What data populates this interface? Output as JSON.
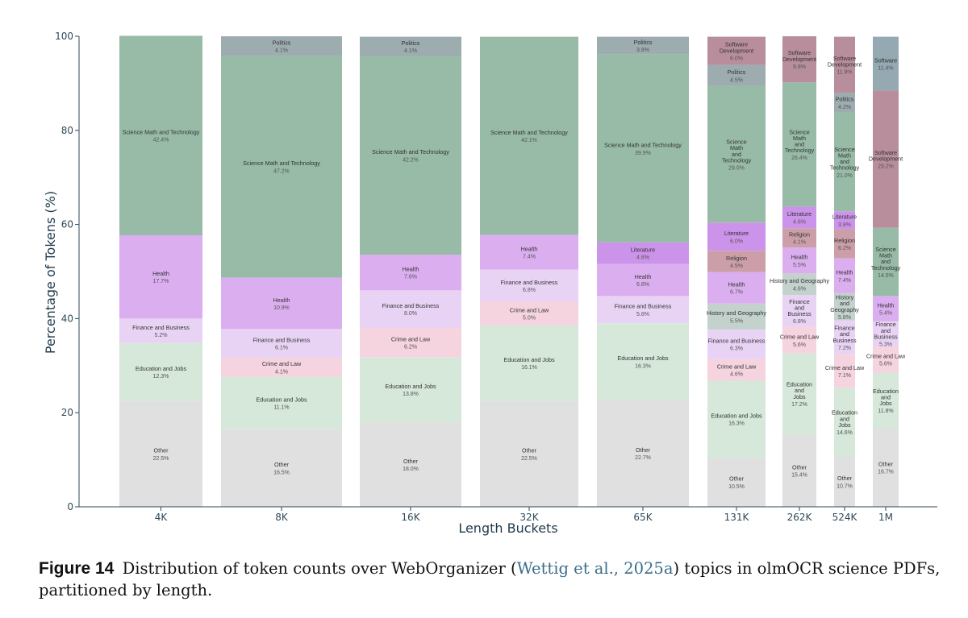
{
  "chart_data": {
    "type": "bar",
    "stacked": true,
    "xlabel": "Length Buckets",
    "ylabel": "Percentage of Tokens (%)",
    "ylim": [
      0,
      100
    ],
    "yticks": [
      0,
      20,
      40,
      60,
      80,
      100
    ],
    "categories": [
      "4K",
      "8K",
      "16K",
      "32K",
      "65K",
      "131K",
      "262K",
      "524K",
      "1M"
    ],
    "topic_colors": {
      "Other": "#e0e0e0",
      "Education and Jobs": "#d5e8da",
      "Crime and Law": "#f5d3df",
      "Finance and Business": "#e8d3f5",
      "Health": "#dbaef0",
      "Religion": "#cc9fa8",
      "Literature": "#cc93ea",
      "History and Geography": "#c3d2cc",
      "Science Math and Technology": "#98bba7",
      "Politics": "#9cacaf",
      "Software Development": "#b88e9c",
      "Software": "#94a9b1"
    },
    "bars": [
      {
        "category": "4K",
        "segments": [
          {
            "topic": "Other",
            "label": "Other",
            "value": 22.5,
            "pct": "22.5%"
          },
          {
            "topic": "Education and Jobs",
            "label": "Education and Jobs",
            "value": 12.3,
            "pct": "12.3%"
          },
          {
            "topic": "Finance and Business",
            "label": "Finance and Business",
            "value": 5.2,
            "pct": "5.2%"
          },
          {
            "topic": "Health",
            "label": "Health",
            "value": 17.7,
            "pct": "17.7%"
          },
          {
            "topic": "Science Math and Technology",
            "label": "Science Math and Technology",
            "value": 42.4,
            "pct": "42.4%"
          }
        ]
      },
      {
        "category": "8K",
        "segments": [
          {
            "topic": "Other",
            "label": "Other",
            "value": 16.5,
            "pct": "16.5%"
          },
          {
            "topic": "Education and Jobs",
            "label": "Education and Jobs",
            "value": 11.1,
            "pct": "11.1%"
          },
          {
            "topic": "Crime and Law",
            "label": "Crime and Law",
            "value": 4.1,
            "pct": "4.1%"
          },
          {
            "topic": "Finance and Business",
            "label": "Finance and Business",
            "value": 6.1,
            "pct": "6.1%"
          },
          {
            "topic": "Health",
            "label": "Health",
            "value": 10.9,
            "pct": "10.9%"
          },
          {
            "topic": "Science Math and Technology",
            "label": "Science Math and Technology",
            "value": 47.2,
            "pct": "47.2%"
          },
          {
            "topic": "Politics",
            "label": "Politics",
            "value": 4.1,
            "pct": "4.1%"
          }
        ]
      },
      {
        "category": "16K",
        "segments": [
          {
            "topic": "Other",
            "label": "Other",
            "value": 18.0,
            "pct": "18.0%"
          },
          {
            "topic": "Education and Jobs",
            "label": "Education and Jobs",
            "value": 13.8,
            "pct": "13.8%"
          },
          {
            "topic": "Crime and Law",
            "label": "Crime and Law",
            "value": 6.2,
            "pct": "6.2%"
          },
          {
            "topic": "Finance and Business",
            "label": "Finance and Business",
            "value": 8.0,
            "pct": "8.0%"
          },
          {
            "topic": "Health",
            "label": "Health",
            "value": 7.6,
            "pct": "7.6%"
          },
          {
            "topic": "Science Math and Technology",
            "label": "Science Math and Technology",
            "value": 42.2,
            "pct": "42.2%"
          },
          {
            "topic": "Politics",
            "label": "Politics",
            "value": 4.1,
            "pct": "4.1%"
          }
        ]
      },
      {
        "category": "32K",
        "segments": [
          {
            "topic": "Other",
            "label": "Other",
            "value": 22.5,
            "pct": "22.5%"
          },
          {
            "topic": "Education and Jobs",
            "label": "Education and Jobs",
            "value": 16.1,
            "pct": "16.1%"
          },
          {
            "topic": "Crime and Law",
            "label": "Crime and Law",
            "value": 5.0,
            "pct": "5.0%"
          },
          {
            "topic": "Finance and Business",
            "label": "Finance and Business",
            "value": 6.8,
            "pct": "6.8%"
          },
          {
            "topic": "Health",
            "label": "Health",
            "value": 7.4,
            "pct": "7.4%"
          },
          {
            "topic": "Science Math and Technology",
            "label": "Science Math and Technology",
            "value": 42.1,
            "pct": "42.1%"
          }
        ]
      },
      {
        "category": "65K",
        "segments": [
          {
            "topic": "Other",
            "label": "Other",
            "value": 22.7,
            "pct": "22.7%"
          },
          {
            "topic": "Education and Jobs",
            "label": "Education and Jobs",
            "value": 16.3,
            "pct": "16.3%"
          },
          {
            "topic": "Finance and Business",
            "label": "Finance and Business",
            "value": 5.8,
            "pct": "5.8%"
          },
          {
            "topic": "Health",
            "label": "Health",
            "value": 6.8,
            "pct": "6.8%"
          },
          {
            "topic": "Literature",
            "label": "Literature",
            "value": 4.6,
            "pct": "4.6%"
          },
          {
            "topic": "Science Math and Technology",
            "label": "Science Math and Technology",
            "value": 39.9,
            "pct": "39.9%"
          },
          {
            "topic": "Politics",
            "label": "Politics",
            "value": 3.8,
            "pct": "3.8%"
          }
        ]
      },
      {
        "category": "131K",
        "segments": [
          {
            "topic": "Other",
            "label": "Other",
            "value": 10.5,
            "pct": "10.5%"
          },
          {
            "topic": "Education and Jobs",
            "label": "Education and Jobs",
            "value": 16.3,
            "pct": "16.3%"
          },
          {
            "topic": "Crime and Law",
            "label": "Crime and Law",
            "value": 4.6,
            "pct": "4.6%"
          },
          {
            "topic": "Finance and Business",
            "label": "Finance and Business",
            "value": 6.3,
            "pct": "6.3%"
          },
          {
            "topic": "History and Geography",
            "label": "History and Geography",
            "value": 5.5,
            "pct": "5.5%"
          },
          {
            "topic": "Health",
            "label": "Health",
            "value": 6.7,
            "pct": "6.7%"
          },
          {
            "topic": "Religion",
            "label": "Religion",
            "value": 4.5,
            "pct": "4.5%"
          },
          {
            "topic": "Literature",
            "label": "Literature",
            "value": 6.0,
            "pct": "6.0%"
          },
          {
            "topic": "Science Math and Technology",
            "label": "Science\nMath\nand\nTechnology",
            "value": 29.0,
            "pct": "29.0%"
          },
          {
            "topic": "Politics",
            "label": "Politics",
            "value": 4.5,
            "pct": "4.5%"
          },
          {
            "topic": "Software Development",
            "label": "Software\nDevelopment",
            "value": 6.0,
            "pct": "6.0%"
          }
        ]
      },
      {
        "category": "262K",
        "segments": [
          {
            "topic": "Other",
            "label": "Other",
            "value": 15.4,
            "pct": "15.4%"
          },
          {
            "topic": "Education and Jobs",
            "label": "Education\nand\nJobs",
            "value": 17.2,
            "pct": "17.2%"
          },
          {
            "topic": "Crime and Law",
            "label": "Crime and Law",
            "value": 5.6,
            "pct": "5.6%"
          },
          {
            "topic": "Finance and Business",
            "label": "Finance\nand\nBusiness",
            "value": 6.8,
            "pct": "6.8%"
          },
          {
            "topic": "History and Geography",
            "label": "History and Geography",
            "value": 4.6,
            "pct": "4.6%"
          },
          {
            "topic": "Health",
            "label": "Health",
            "value": 5.5,
            "pct": "5.5%"
          },
          {
            "topic": "Religion",
            "label": "Religion",
            "value": 4.1,
            "pct": "4.1%"
          },
          {
            "topic": "Literature",
            "label": "Literature",
            "value": 4.6,
            "pct": "4.6%"
          },
          {
            "topic": "Science Math and Technology",
            "label": "Science\nMath\nand\nTechnology",
            "value": 26.4,
            "pct": "26.4%"
          },
          {
            "topic": "Software Development",
            "label": "Software\nDevelopment",
            "value": 9.8,
            "pct": "9.8%"
          }
        ]
      },
      {
        "category": "524K",
        "segments": [
          {
            "topic": "Other",
            "label": "Other",
            "value": 10.7,
            "pct": "10.7%"
          },
          {
            "topic": "Education and Jobs",
            "label": "Education\nand\nJobs",
            "value": 14.6,
            "pct": "14.6%"
          },
          {
            "topic": "Crime and Law",
            "label": "Crime and Law",
            "value": 7.1,
            "pct": "7.1%"
          },
          {
            "topic": "Finance and Business",
            "label": "Finance\nand\nBusiness",
            "value": 7.2,
            "pct": "7.2%"
          },
          {
            "topic": "History and Geography",
            "label": "History\nand\nGeography",
            "value": 5.8,
            "pct": "5.8%"
          },
          {
            "topic": "Health",
            "label": "Health",
            "value": 7.4,
            "pct": "7.4%"
          },
          {
            "topic": "Religion",
            "label": "Religion",
            "value": 6.2,
            "pct": "6.2%"
          },
          {
            "topic": "Literature",
            "label": "Literature",
            "value": 3.8,
            "pct": "3.8%"
          },
          {
            "topic": "Science Math and Technology",
            "label": "Science\nMath\nand\nTechnology",
            "value": 21.0,
            "pct": "21.0%"
          },
          {
            "topic": "Politics",
            "label": "Politics",
            "value": 4.2,
            "pct": "4.2%"
          },
          {
            "topic": "Software Development",
            "label": "Software\nDevelopment",
            "value": 11.9,
            "pct": "11.9%"
          }
        ]
      },
      {
        "category": "1M",
        "segments": [
          {
            "topic": "Other",
            "label": "Other",
            "value": 16.7,
            "pct": "16.7%"
          },
          {
            "topic": "Education and Jobs",
            "label": "Education\nand\nJobs",
            "value": 11.8,
            "pct": "11.8%"
          },
          {
            "topic": "Crime and Law",
            "label": "Crime and Law",
            "value": 5.6,
            "pct": "5.6%"
          },
          {
            "topic": "Finance and Business",
            "label": "Finance\nand\nBusiness",
            "value": 5.3,
            "pct": "5.3%"
          },
          {
            "topic": "Health",
            "label": "Health",
            "value": 5.4,
            "pct": "5.4%"
          },
          {
            "topic": "Science Math and Technology",
            "label": "Science\nMath\nand\nTechnology",
            "value": 14.5,
            "pct": "14.5%"
          },
          {
            "topic": "Software Development",
            "label": "Software\nDevelopment",
            "value": 29.2,
            "pct": "29.2%"
          },
          {
            "topic": "Software",
            "label": "Software",
            "value": 11.4,
            "pct": "11.4%"
          }
        ]
      }
    ]
  },
  "caption": {
    "figure_label": "Figure 14",
    "text_before": "Distribution of token counts over WebOrganizer (",
    "citation": "Wettig et al., 2025a",
    "text_after": ") topics in olmOCR science PDFs, partitioned by length."
  }
}
